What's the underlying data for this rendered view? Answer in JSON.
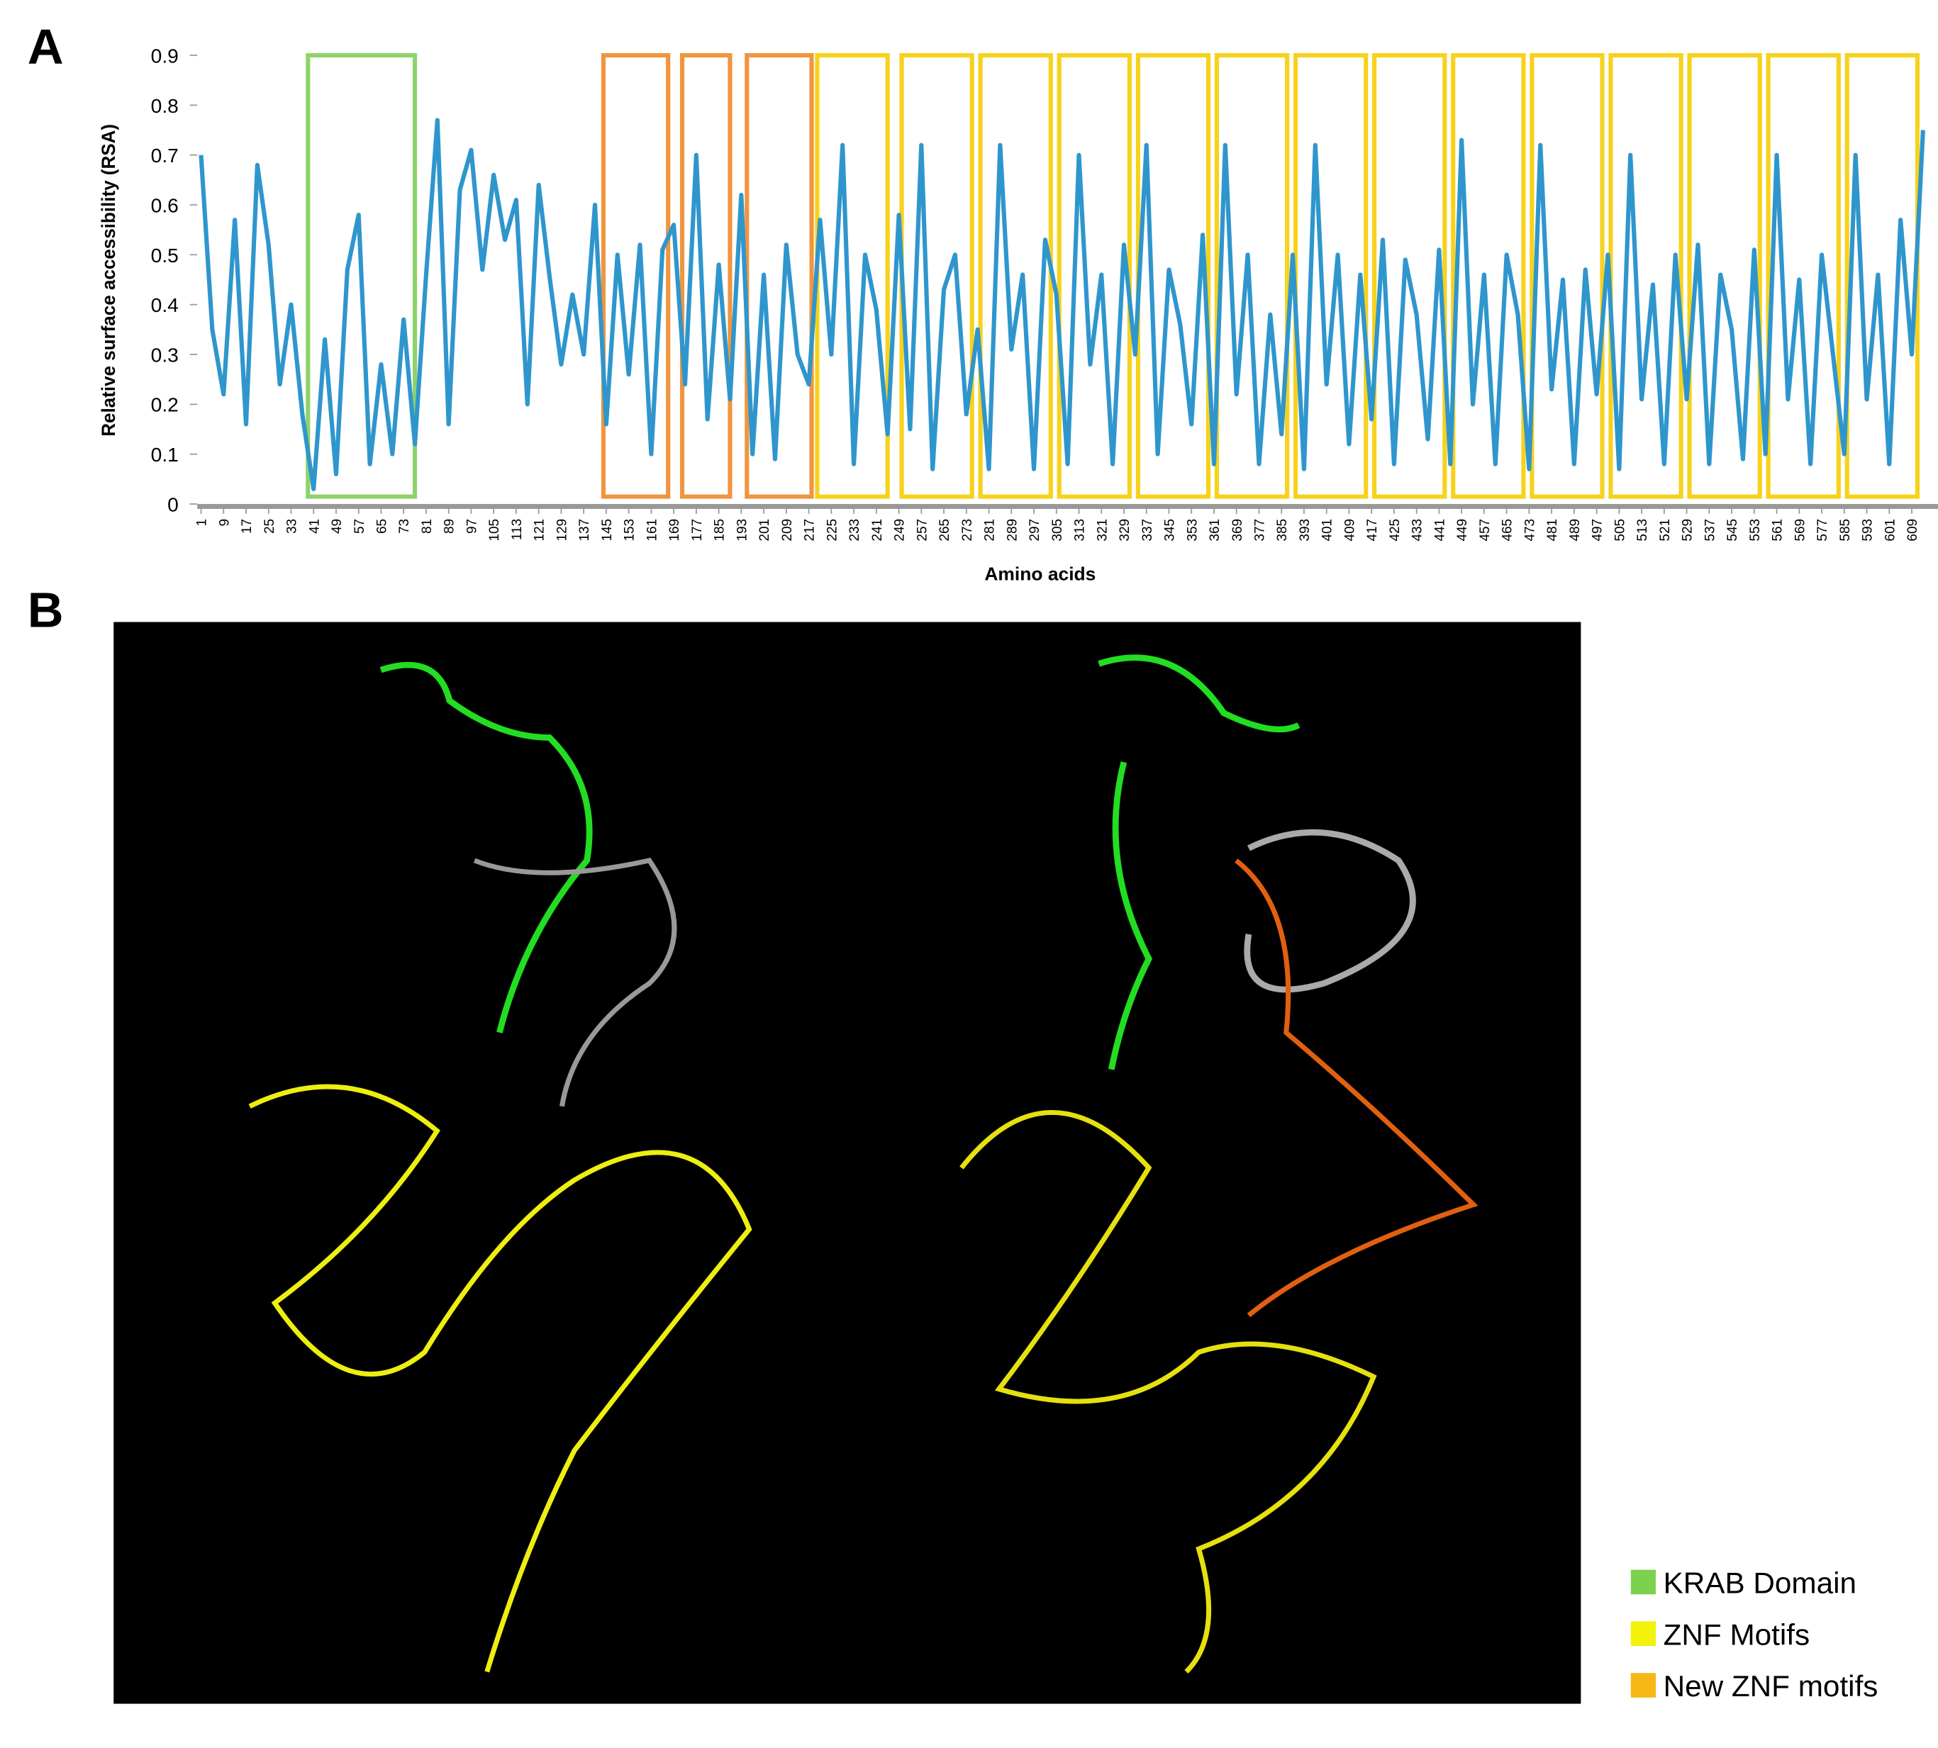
{
  "chart_data": {
    "type": "line",
    "panel_a": "A",
    "panel_b": "B",
    "ylabel": "Relative surface accessibility (RSA)",
    "xlabel": "Amino acids",
    "color": "#2f96cd",
    "xlim": [
      1,
      613
    ],
    "ylim": [
      0,
      0.9
    ],
    "yticks": [
      0,
      0.1,
      0.2,
      0.3,
      0.4,
      0.5,
      0.6,
      0.7,
      0.8,
      0.9
    ],
    "xticks": [
      1,
      9,
      17,
      25,
      33,
      41,
      49,
      57,
      65,
      73,
      81,
      89,
      97,
      105,
      113,
      121,
      129,
      137,
      145,
      153,
      161,
      169,
      177,
      185,
      193,
      201,
      209,
      217,
      225,
      233,
      241,
      249,
      257,
      265,
      273,
      281,
      289,
      297,
      305,
      313,
      321,
      329,
      337,
      345,
      353,
      361,
      369,
      377,
      385,
      393,
      401,
      409,
      417,
      425,
      433,
      441,
      449,
      457,
      465,
      473,
      481,
      489,
      497,
      505,
      513,
      521,
      529,
      537,
      545,
      553,
      561,
      569,
      577,
      585,
      593,
      601,
      609
    ],
    "x": [
      1,
      5,
      9,
      13,
      17,
      21,
      25,
      29,
      33,
      37,
      41,
      45,
      49,
      53,
      57,
      61,
      65,
      69,
      73,
      77,
      81,
      85,
      89,
      93,
      97,
      101,
      105,
      109,
      113,
      117,
      121,
      125,
      129,
      133,
      137,
      141,
      145,
      149,
      153,
      157,
      161,
      165,
      169,
      173,
      177,
      181,
      185,
      189,
      193,
      197,
      201,
      205,
      209,
      213,
      217,
      221,
      225,
      229,
      233,
      237,
      241,
      245,
      249,
      253,
      257,
      261,
      265,
      269,
      273,
      277,
      281,
      285,
      289,
      293,
      297,
      301,
      305,
      309,
      313,
      317,
      321,
      325,
      329,
      333,
      337,
      341,
      345,
      349,
      353,
      357,
      361,
      365,
      369,
      373,
      377,
      381,
      385,
      389,
      393,
      397,
      401,
      405,
      409,
      413,
      417,
      421,
      425,
      429,
      433,
      437,
      441,
      445,
      449,
      453,
      457,
      461,
      465,
      469,
      473,
      477,
      481,
      485,
      489,
      493,
      497,
      501,
      505,
      509,
      513,
      517,
      521,
      525,
      529,
      533,
      537,
      541,
      545,
      549,
      553,
      557,
      561,
      565,
      569,
      573,
      577,
      581,
      585,
      589,
      593,
      597,
      601,
      605,
      609,
      613
    ],
    "values": [
      0.7,
      0.35,
      0.22,
      0.57,
      0.16,
      0.68,
      0.52,
      0.24,
      0.4,
      0.18,
      0.03,
      0.33,
      0.06,
      0.47,
      0.58,
      0.08,
      0.28,
      0.1,
      0.37,
      0.12,
      0.46,
      0.77,
      0.16,
      0.63,
      0.71,
      0.47,
      0.66,
      0.53,
      0.61,
      0.2,
      0.64,
      0.45,
      0.28,
      0.42,
      0.3,
      0.6,
      0.16,
      0.5,
      0.26,
      0.52,
      0.1,
      0.51,
      0.56,
      0.24,
      0.7,
      0.17,
      0.48,
      0.21,
      0.62,
      0.1,
      0.46,
      0.09,
      0.52,
      0.3,
      0.24,
      0.57,
      0.3,
      0.72,
      0.08,
      0.5,
      0.39,
      0.14,
      0.58,
      0.15,
      0.72,
      0.07,
      0.43,
      0.5,
      0.18,
      0.35,
      0.07,
      0.72,
      0.31,
      0.46,
      0.07,
      0.53,
      0.42,
      0.08,
      0.7,
      0.28,
      0.46,
      0.08,
      0.52,
      0.3,
      0.72,
      0.1,
      0.47,
      0.36,
      0.16,
      0.54,
      0.08,
      0.72,
      0.22,
      0.5,
      0.08,
      0.38,
      0.14,
      0.5,
      0.07,
      0.72,
      0.24,
      0.5,
      0.12,
      0.46,
      0.17,
      0.53,
      0.08,
      0.49,
      0.38,
      0.13,
      0.51,
      0.08,
      0.73,
      0.2,
      0.46,
      0.08,
      0.5,
      0.38,
      0.07,
      0.72,
      0.23,
      0.45,
      0.08,
      0.47,
      0.22,
      0.5,
      0.07,
      0.7,
      0.21,
      0.44,
      0.08,
      0.5,
      0.21,
      0.52,
      0.08,
      0.46,
      0.35,
      0.09,
      0.51,
      0.1,
      0.7,
      0.21,
      0.45,
      0.08,
      0.5,
      0.3,
      0.1,
      0.7,
      0.21,
      0.46,
      0.08,
      0.57,
      0.3,
      0.75
    ],
    "regions": [
      {
        "start": 39,
        "end": 77,
        "color": "#8ed36b"
      },
      {
        "start": 144,
        "end": 167,
        "color": "#f0953f"
      },
      {
        "start": 172,
        "end": 189,
        "color": "#f0953f"
      },
      {
        "start": 195,
        "end": 218,
        "color": "#f0953f"
      },
      {
        "start": 220,
        "end": 245,
        "color": "#f7d21c"
      },
      {
        "start": 250,
        "end": 275,
        "color": "#f7d21c"
      },
      {
        "start": 278,
        "end": 303,
        "color": "#f7d21c"
      },
      {
        "start": 306,
        "end": 331,
        "color": "#f7d21c"
      },
      {
        "start": 334,
        "end": 359,
        "color": "#f7d21c"
      },
      {
        "start": 362,
        "end": 387,
        "color": "#f7d21c"
      },
      {
        "start": 390,
        "end": 415,
        "color": "#f7d21c"
      },
      {
        "start": 418,
        "end": 443,
        "color": "#f7d21c"
      },
      {
        "start": 446,
        "end": 471,
        "color": "#f7d21c"
      },
      {
        "start": 474,
        "end": 499,
        "color": "#f7d21c"
      },
      {
        "start": 502,
        "end": 527,
        "color": "#f7d21c"
      },
      {
        "start": 530,
        "end": 555,
        "color": "#f7d21c"
      },
      {
        "start": 558,
        "end": 583,
        "color": "#f7d21c"
      },
      {
        "start": 586,
        "end": 611,
        "color": "#f7d21c"
      }
    ],
    "legend": [
      {
        "label": "KRAB Domain",
        "color": "#7cd24e"
      },
      {
        "label": "ZNF Motifs",
        "color": "#f2f20a"
      },
      {
        "label": "New ZNF motifs",
        "color": "#f7b815"
      }
    ]
  }
}
